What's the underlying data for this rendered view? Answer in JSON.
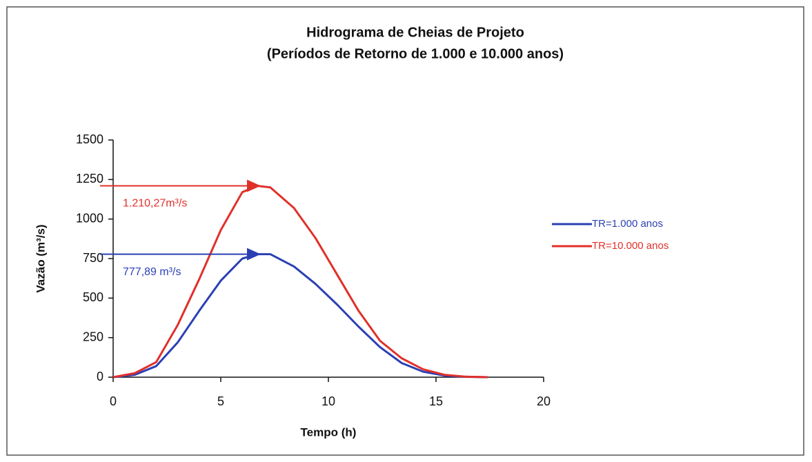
{
  "chart_data": {
    "type": "line",
    "title": "Hidrograma de Cheias de Projeto",
    "subtitle": "(Períodos de Retorno de 1.000 e 10.000 anos)",
    "x_label": "Tempo (h)",
    "y_label": "Vazão (m³/s)",
    "x": [
      0,
      1,
      2,
      3,
      4,
      5,
      6,
      6.7,
      7.3,
      8.4,
      9.4,
      10.4,
      11.4,
      12.4,
      13.4,
      14.4,
      15.4,
      16.4,
      17.4
    ],
    "series": [
      {
        "name": "TR=1.000 anos",
        "color": "#2b3fb3",
        "values": [
          0,
          15,
          70,
          220,
          420,
          610,
          750,
          778,
          778,
          700,
          590,
          460,
          320,
          190,
          90,
          35,
          10,
          2,
          0
        ]
      },
      {
        "name": "TR=10.000 anos",
        "color": "#e0302a",
        "values": [
          0,
          25,
          95,
          330,
          620,
          930,
          1170,
          1210,
          1200,
          1070,
          880,
          650,
          420,
          230,
          120,
          50,
          15,
          3,
          0
        ]
      }
    ],
    "annotations": [
      {
        "text": "1.210,27m³/s",
        "value": 1210.27,
        "color": "#e0302a"
      },
      {
        "text": "777,89 m³/s",
        "value": 777.89,
        "color": "#2b3fb3"
      }
    ],
    "xlim": [
      0,
      20
    ],
    "xticks": [
      0,
      5,
      10,
      15,
      20
    ],
    "ylim": [
      0,
      1500
    ],
    "yticks": [
      0,
      250,
      500,
      750,
      1000,
      1250,
      1500
    ],
    "grid": false,
    "legend": "right"
  }
}
